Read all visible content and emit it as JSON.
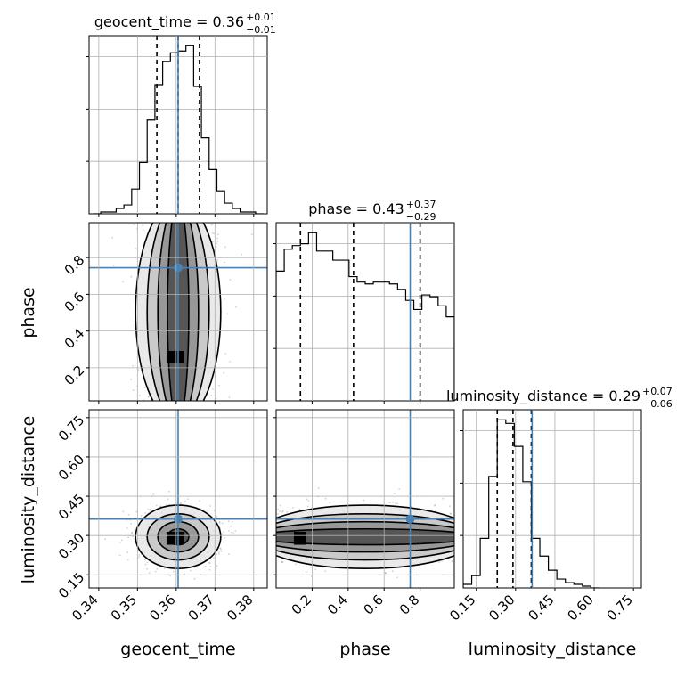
{
  "chart_data": {
    "type": "corner",
    "parameters": [
      "geocent_time",
      "phase",
      "luminosity_distance"
    ],
    "truths": {
      "geocent_time": 0.3605,
      "phase": 0.745,
      "luminosity_distance": 0.363
    },
    "grid": true,
    "panels": [
      {
        "id": "hist-geocent_time",
        "type": "histogram",
        "param": "geocent_time",
        "title": {
          "text": "geocent_time = 0.36",
          "sup": "+0.01",
          "sub": "−0.01"
        },
        "xlim": [
          0.3375,
          0.3835
        ],
        "quantiles": [
          0.355,
          0.3605,
          0.366
        ],
        "bins": [
          0.3385,
          0.3405,
          0.3425,
          0.3445,
          0.3465,
          0.3485,
          0.3505,
          0.3525,
          0.3545,
          0.3565,
          0.3585,
          0.3605,
          0.3625,
          0.3645,
          0.3665,
          0.3685,
          0.3705,
          0.3725,
          0.3745,
          0.3765,
          0.3785,
          0.3805,
          0.3825
        ],
        "counts": [
          0,
          1,
          1,
          3,
          5,
          14,
          29,
          53,
          73,
          86,
          91,
          92,
          95,
          72,
          43,
          25,
          13,
          6,
          3,
          1,
          1,
          0
        ]
      },
      {
        "id": "hist-phase",
        "type": "histogram",
        "param": "phase",
        "title": {
          "text": "phase = 0.43",
          "sup": "+0.37",
          "sub": "−0.29"
        },
        "xlim": [
          0.0,
          0.99
        ],
        "quantiles": [
          0.135,
          0.43,
          0.8
        ],
        "bins": [
          0.0,
          0.045,
          0.09,
          0.135,
          0.18,
          0.225,
          0.27,
          0.315,
          0.36,
          0.405,
          0.45,
          0.495,
          0.54,
          0.585,
          0.63,
          0.675,
          0.72,
          0.765,
          0.81,
          0.855,
          0.9,
          0.945,
          0.99
        ],
        "counts": [
          71,
          83,
          85,
          86,
          92,
          82,
          82,
          77,
          77,
          68,
          65,
          64,
          65,
          65,
          64,
          61,
          55,
          50,
          58,
          57,
          52,
          46
        ]
      },
      {
        "id": "hist-luminosity_distance",
        "type": "histogram",
        "param": "luminosity_distance",
        "title": {
          "text": "luminosity_distance = 0.29",
          "sup": "+0.07",
          "sub": "−0.06"
        },
        "xlim": [
          0.1,
          0.78
        ],
        "quantiles": [
          0.23,
          0.29,
          0.36
        ],
        "bins": [
          0.1,
          0.1325,
          0.165,
          0.1975,
          0.23,
          0.2625,
          0.295,
          0.3275,
          0.36,
          0.3925,
          0.425,
          0.4575,
          0.49,
          0.5225,
          0.555,
          0.5875,
          0.62
        ],
        "counts": [
          2,
          7,
          28,
          63,
          95,
          93,
          80,
          60,
          28,
          18,
          10,
          5,
          3,
          2,
          1,
          0
        ]
      },
      {
        "id": "scatter-phase-vs-geocent_time",
        "type": "scatter_contour",
        "x": "geocent_time",
        "y": "phase",
        "xlim": [
          0.3375,
          0.3835
        ],
        "ylim": [
          0.02,
          0.99
        ],
        "center": [
          0.3605,
          0.5
        ],
        "spread": [
          0.005,
          0.3
        ]
      },
      {
        "id": "scatter-luminosity_distance-vs-geocent_time",
        "type": "scatter_contour",
        "x": "geocent_time",
        "y": "luminosity_distance",
        "xlim": [
          0.3375,
          0.3835
        ],
        "ylim": [
          0.1,
          0.78
        ],
        "center": [
          0.3605,
          0.295
        ],
        "spread": [
          0.005,
          0.055
        ]
      },
      {
        "id": "scatter-luminosity_distance-vs-phase",
        "type": "scatter_contour",
        "x": "phase",
        "y": "luminosity_distance",
        "xlim": [
          0.0,
          0.99
        ],
        "ylim": [
          0.1,
          0.78
        ],
        "center": [
          0.45,
          0.295
        ],
        "spread": [
          0.3,
          0.055
        ]
      }
    ],
    "axes": {
      "geocent_time": {
        "label": "geocent_time",
        "ticks": [
          0.34,
          0.35,
          0.36,
          0.37,
          0.38
        ],
        "tick_labels": [
          "0.34",
          "0.35",
          "0.36",
          "0.37",
          "0.38"
        ]
      },
      "phase": {
        "label": "phase",
        "ticks": [
          0.2,
          0.4,
          0.6,
          0.8
        ],
        "tick_labels": [
          "0.2",
          "0.4",
          "0.6",
          "0.8"
        ]
      },
      "luminosity_distance": {
        "label": "luminosity_distance",
        "ticks": [
          0.15,
          0.3,
          0.45,
          0.6,
          0.75
        ],
        "tick_labels": [
          "0.15",
          "0.30",
          "0.45",
          "0.60",
          "0.75"
        ]
      }
    },
    "colors": {
      "truth": "#4682b4",
      "hist": "#000000",
      "quantile": "#000000",
      "grid": "#b0b0b0"
    }
  }
}
